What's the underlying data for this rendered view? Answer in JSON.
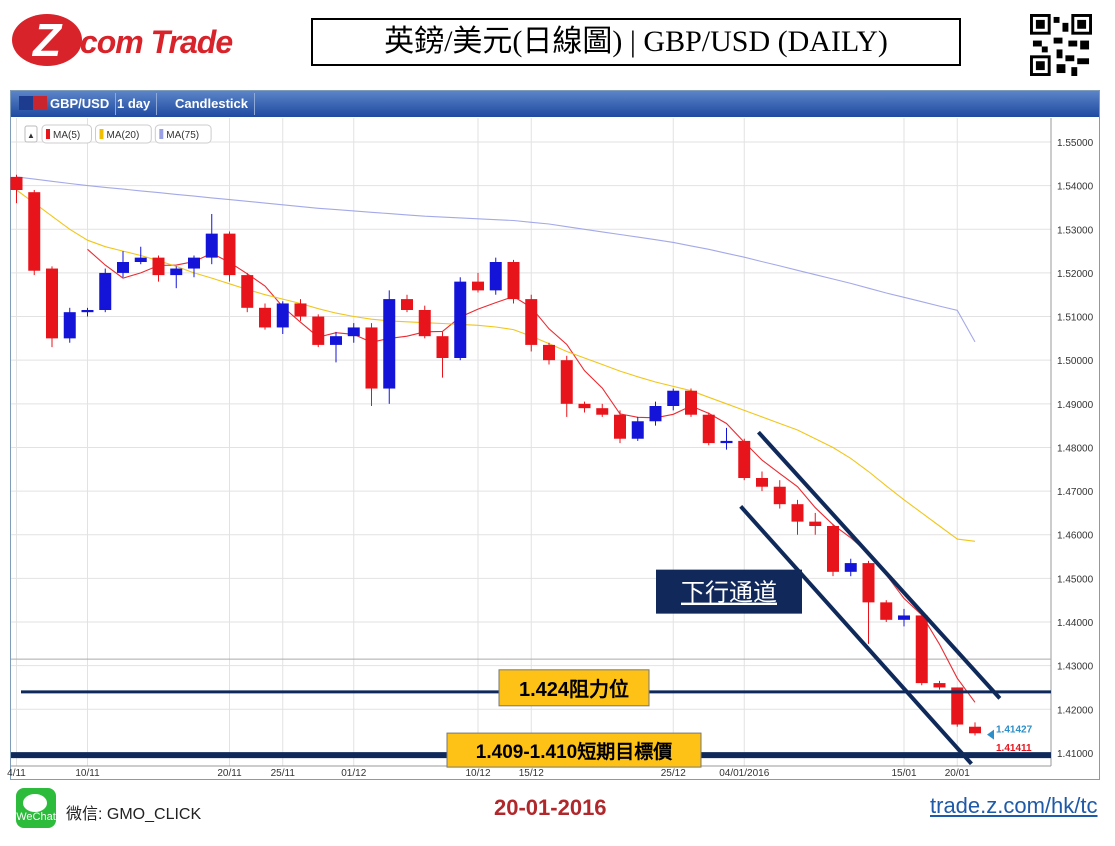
{
  "header": {
    "logo_text": "Z.com Trade",
    "title": "英鎊/美元(日線圖) | GBP/USD (DAILY)"
  },
  "toolbar": {
    "symbol": "GBP/USD",
    "timeframe": "1 day",
    "chart_style": "Candlestick"
  },
  "legend": {
    "collapse": "▲",
    "items": [
      {
        "label": "MA(5)",
        "color": "#e8141c"
      },
      {
        "label": "MA(20)",
        "color": "#f0c000"
      },
      {
        "label": "MA(75)",
        "color": "#9aa0e6"
      }
    ]
  },
  "colors": {
    "up": "#1414d8",
    "down": "#e8141c",
    "line": "#0f2a5a"
  },
  "chart_data": {
    "type": "candlestick",
    "title": "英鎊/美元(日線圖) | GBP/USD (DAILY)",
    "ylim": [
      1.407,
      1.5555
    ],
    "y_ticks": [
      "1.55000",
      "1.54000",
      "1.53000",
      "1.52000",
      "1.51000",
      "1.50000",
      "1.49000",
      "1.48000",
      "1.47000",
      "1.46000",
      "1.45000",
      "1.44000",
      "1.43000",
      "1.42000",
      "1.41000"
    ],
    "x_ticks": [
      {
        "i": 0,
        "label": "4/11"
      },
      {
        "i": 4,
        "label": "10/11"
      },
      {
        "i": 12,
        "label": "20/11"
      },
      {
        "i": 15,
        "label": "25/11"
      },
      {
        "i": 19,
        "label": "01/12"
      },
      {
        "i": 26,
        "label": "10/12"
      },
      {
        "i": 29,
        "label": "15/12"
      },
      {
        "i": 37,
        "label": "25/12"
      },
      {
        "i": 41,
        "label": "04/01/2016"
      },
      {
        "i": 50,
        "label": "15/01"
      },
      {
        "i": 53,
        "label": "20/01"
      }
    ],
    "candles": [
      {
        "o": 1.542,
        "h": 1.5425,
        "l": 1.536,
        "c": 1.539
      },
      {
        "o": 1.5385,
        "h": 1.539,
        "l": 1.5195,
        "c": 1.5205
      },
      {
        "o": 1.521,
        "h": 1.5215,
        "l": 1.503,
        "c": 1.505
      },
      {
        "o": 1.505,
        "h": 1.512,
        "l": 1.504,
        "c": 1.511
      },
      {
        "o": 1.511,
        "h": 1.512,
        "l": 1.51,
        "c": 1.5115
      },
      {
        "o": 1.5115,
        "h": 1.521,
        "l": 1.511,
        "c": 1.52
      },
      {
        "o": 1.52,
        "h": 1.525,
        "l": 1.519,
        "c": 1.5225
      },
      {
        "o": 1.5225,
        "h": 1.526,
        "l": 1.522,
        "c": 1.5235
      },
      {
        "o": 1.5235,
        "h": 1.524,
        "l": 1.518,
        "c": 1.5195
      },
      {
        "o": 1.5195,
        "h": 1.5215,
        "l": 1.5165,
        "c": 1.521
      },
      {
        "o": 1.521,
        "h": 1.524,
        "l": 1.519,
        "c": 1.5235
      },
      {
        "o": 1.5235,
        "h": 1.5335,
        "l": 1.522,
        "c": 1.529
      },
      {
        "o": 1.529,
        "h": 1.5295,
        "l": 1.518,
        "c": 1.5195
      },
      {
        "o": 1.5195,
        "h": 1.52,
        "l": 1.511,
        "c": 1.512
      },
      {
        "o": 1.512,
        "h": 1.513,
        "l": 1.507,
        "c": 1.5075
      },
      {
        "o": 1.5075,
        "h": 1.5135,
        "l": 1.506,
        "c": 1.513
      },
      {
        "o": 1.513,
        "h": 1.514,
        "l": 1.509,
        "c": 1.51
      },
      {
        "o": 1.51,
        "h": 1.5105,
        "l": 1.503,
        "c": 1.5035
      },
      {
        "o": 1.5035,
        "h": 1.5065,
        "l": 1.4995,
        "c": 1.5055
      },
      {
        "o": 1.5055,
        "h": 1.5085,
        "l": 1.504,
        "c": 1.5075
      },
      {
        "o": 1.5075,
        "h": 1.5085,
        "l": 1.4895,
        "c": 1.4935
      },
      {
        "o": 1.4935,
        "h": 1.516,
        "l": 1.49,
        "c": 1.514
      },
      {
        "o": 1.514,
        "h": 1.515,
        "l": 1.511,
        "c": 1.5115
      },
      {
        "o": 1.5115,
        "h": 1.5125,
        "l": 1.505,
        "c": 1.5055
      },
      {
        "o": 1.5055,
        "h": 1.5065,
        "l": 1.496,
        "c": 1.5005
      },
      {
        "o": 1.5005,
        "h": 1.519,
        "l": 1.5,
        "c": 1.518
      },
      {
        "o": 1.518,
        "h": 1.52,
        "l": 1.5155,
        "c": 1.516
      },
      {
        "o": 1.516,
        "h": 1.5235,
        "l": 1.515,
        "c": 1.5225
      },
      {
        "o": 1.5225,
        "h": 1.523,
        "l": 1.513,
        "c": 1.514
      },
      {
        "o": 1.514,
        "h": 1.515,
        "l": 1.502,
        "c": 1.5035
      },
      {
        "o": 1.5035,
        "h": 1.504,
        "l": 1.499,
        "c": 1.5
      },
      {
        "o": 1.5,
        "h": 1.501,
        "l": 1.487,
        "c": 1.49
      },
      {
        "o": 1.49,
        "h": 1.4905,
        "l": 1.488,
        "c": 1.489
      },
      {
        "o": 1.489,
        "h": 1.49,
        "l": 1.487,
        "c": 1.4875
      },
      {
        "o": 1.4875,
        "h": 1.4885,
        "l": 1.481,
        "c": 1.482
      },
      {
        "o": 1.482,
        "h": 1.487,
        "l": 1.4815,
        "c": 1.486
      },
      {
        "o": 1.486,
        "h": 1.4905,
        "l": 1.485,
        "c": 1.4895
      },
      {
        "o": 1.4895,
        "h": 1.4935,
        "l": 1.4885,
        "c": 1.493
      },
      {
        "o": 1.493,
        "h": 1.4935,
        "l": 1.487,
        "c": 1.4875
      },
      {
        "o": 1.4875,
        "h": 1.488,
        "l": 1.4805,
        "c": 1.481
      },
      {
        "o": 1.481,
        "h": 1.4845,
        "l": 1.4795,
        "c": 1.4815
      },
      {
        "o": 1.4815,
        "h": 1.482,
        "l": 1.4725,
        "c": 1.473
      },
      {
        "o": 1.473,
        "h": 1.4745,
        "l": 1.47,
        "c": 1.471
      },
      {
        "o": 1.471,
        "h": 1.4725,
        "l": 1.466,
        "c": 1.467
      },
      {
        "o": 1.467,
        "h": 1.468,
        "l": 1.46,
        "c": 1.463
      },
      {
        "o": 1.463,
        "h": 1.465,
        "l": 1.46,
        "c": 1.462
      },
      {
        "o": 1.462,
        "h": 1.4625,
        "l": 1.4505,
        "c": 1.4515
      },
      {
        "o": 1.4515,
        "h": 1.4545,
        "l": 1.4505,
        "c": 1.4535
      },
      {
        "o": 1.4535,
        "h": 1.454,
        "l": 1.435,
        "c": 1.4445
      },
      {
        "o": 1.4445,
        "h": 1.445,
        "l": 1.44,
        "c": 1.4405
      },
      {
        "o": 1.4405,
        "h": 1.443,
        "l": 1.439,
        "c": 1.4415
      },
      {
        "o": 1.4415,
        "h": 1.442,
        "l": 1.4255,
        "c": 1.426
      },
      {
        "o": 1.426,
        "h": 1.4265,
        "l": 1.4245,
        "c": 1.425
      },
      {
        "o": 1.425,
        "h": 1.425,
        "l": 1.416,
        "c": 1.4165
      },
      {
        "o": 1.416,
        "h": 1.417,
        "l": 1.414,
        "c": 1.4145
      }
    ],
    "series": [
      {
        "name": "MA(5)",
        "color": "#e8141c",
        "values": [
          null,
          null,
          null,
          null,
          1.5254,
          1.5218,
          1.5188,
          1.52,
          1.5217,
          1.5218,
          1.5226,
          1.5245,
          1.5224,
          1.5198,
          1.517,
          1.5122,
          1.5087,
          1.5053,
          1.5063,
          1.5059,
          1.5041,
          1.505,
          1.5055,
          1.5065,
          1.5066,
          1.5099,
          1.5117,
          1.5132,
          1.5146,
          1.5121,
          1.5072,
          1.5036,
          1.4976,
          1.4936,
          1.4877,
          1.4869,
          1.4868,
          1.4876,
          1.4895,
          1.4878,
          1.4855,
          1.4812,
          1.4771,
          1.474,
          1.471,
          1.4662,
          1.4623,
          1.4593,
          1.4557,
          1.4508,
          1.4454,
          1.4416,
          1.4349,
          1.4271,
          1.4216
        ]
      },
      {
        "name": "MA(20)",
        "color": "#f0c000",
        "values": [
          1.539,
          1.536,
          1.533,
          1.53,
          1.5275,
          1.526,
          1.525,
          1.524,
          1.5228,
          1.5215,
          1.52,
          1.5188,
          1.5175,
          1.5162,
          1.515,
          1.514,
          1.513,
          1.5118,
          1.5108,
          1.51,
          1.5094,
          1.509,
          1.5088,
          1.5086,
          1.5084,
          1.5082,
          1.508,
          1.5076,
          1.507,
          1.5055,
          1.5038,
          1.502,
          1.5005,
          1.499,
          1.4975,
          1.4962,
          1.495,
          1.494,
          1.493,
          1.4915,
          1.49,
          1.4885,
          1.487,
          1.4855,
          1.484,
          1.482,
          1.48,
          1.4775,
          1.4745,
          1.4712,
          1.468,
          1.465,
          1.462,
          1.459,
          1.4585
        ]
      },
      {
        "name": "MA(75)",
        "color": "#9aa0e6",
        "values": [
          1.542,
          1.5415,
          1.541,
          1.5405,
          1.54,
          1.5396,
          1.5392,
          1.5388,
          1.5384,
          1.538,
          1.5376,
          1.5372,
          1.5368,
          1.5364,
          1.536,
          1.5356,
          1.5352,
          1.5348,
          1.5345,
          1.5342,
          1.5339,
          1.5336,
          1.5333,
          1.533,
          1.5328,
          1.5326,
          1.5324,
          1.5322,
          1.532,
          1.5316,
          1.5312,
          1.5306,
          1.53,
          1.5294,
          1.5288,
          1.5282,
          1.5276,
          1.527,
          1.5262,
          1.5254,
          1.5245,
          1.5236,
          1.5226,
          1.5216,
          1.5206,
          1.5196,
          1.5186,
          1.5176,
          1.5165,
          1.5154,
          1.5144,
          1.5134,
          1.5124,
          1.5114,
          1.5042
        ]
      }
    ],
    "price_labels": [
      {
        "value": 1.41427,
        "text": "1.41427",
        "color": "#2d8fc8"
      },
      {
        "value": 1.41411,
        "text": "1.41411",
        "color": "#e8141c"
      }
    ],
    "annotations": {
      "channel_label": "下行通道",
      "resistance": {
        "value": 1.424,
        "label": "1.424阻力位"
      },
      "target": {
        "value": 1.4095,
        "label": "1.409-1.410短期目標價"
      }
    }
  },
  "footer": {
    "wechat_icon": "WeChat",
    "wechat_label": "微信: GMO_CLICK",
    "date": "20-01-2016",
    "url": "trade.z.com/hk/tc"
  }
}
